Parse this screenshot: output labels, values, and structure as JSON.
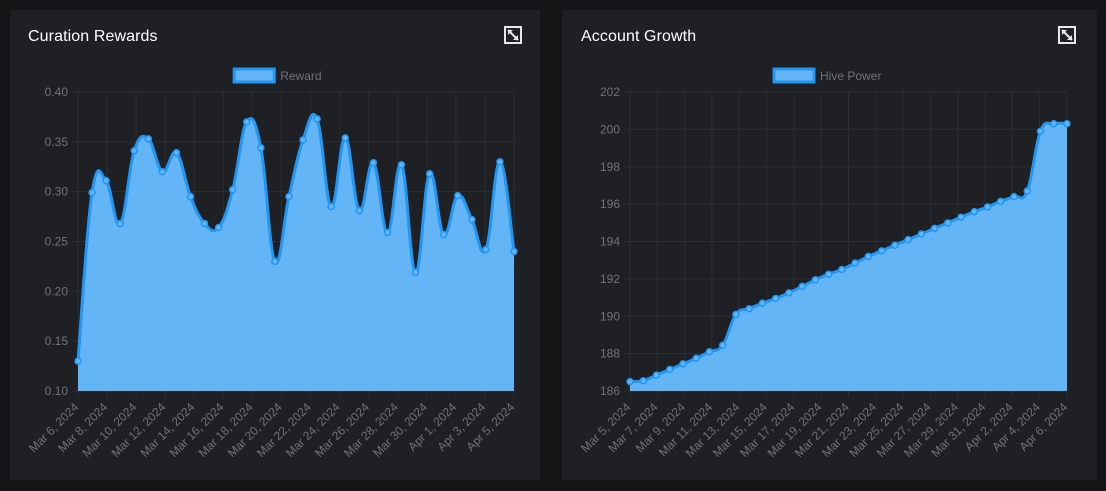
{
  "panels": [
    {
      "title": "Curation Rewards",
      "expand_icon": "expand-icon"
    },
    {
      "title": "Account Growth",
      "expand_icon": "expand-icon"
    }
  ],
  "colors": {
    "fill": "#64b5f6",
    "line": "#2196f3",
    "grid": "#2b2e33",
    "text": "#6f737a"
  },
  "chart_data": [
    {
      "type": "area",
      "series": [
        {
          "name": "Reward",
          "values": [
            0.13,
            0.299,
            0.311,
            0.268,
            0.341,
            0.353,
            0.32,
            0.339,
            0.295,
            0.268,
            0.264,
            0.302,
            0.37,
            0.344,
            0.23,
            0.295,
            0.352,
            0.373,
            0.285,
            0.354,
            0.281,
            0.329,
            0.259,
            0.327,
            0.219,
            0.318,
            0.257,
            0.296,
            0.272,
            0.242,
            0.33,
            0.24
          ]
        }
      ],
      "x_tick_labels": [
        "Mar 6, 2024",
        "Mar 8, 2024",
        "Mar 10, 2024",
        "Mar 12, 2024",
        "Mar 14, 2024",
        "Mar 16, 2024",
        "Mar 18, 2024",
        "Mar 20, 2024",
        "Mar 22, 2024",
        "Mar 24, 2024",
        "Mar 26, 2024",
        "Mar 28, 2024",
        "Mar 30, 2024",
        "Apr 1, 2024",
        "Apr 3, 2024",
        "Apr 5, 2024"
      ],
      "y_ticks": [
        "0.40",
        "0.35",
        "0.30",
        "0.25",
        "0.20",
        "0.15",
        "0.10"
      ],
      "ylim": [
        0.1,
        0.4
      ],
      "legend": "top-center",
      "grid": true
    },
    {
      "type": "area",
      "series": [
        {
          "name": "Hive Power",
          "values": [
            186.5,
            186.55,
            186.85,
            187.15,
            187.45,
            187.75,
            188.1,
            188.45,
            190.1,
            190.4,
            190.7,
            190.95,
            191.25,
            191.6,
            191.95,
            192.25,
            192.5,
            192.85,
            193.2,
            193.5,
            193.8,
            194.1,
            194.4,
            194.7,
            195.0,
            195.3,
            195.6,
            195.85,
            196.15,
            196.4,
            196.7,
            199.9,
            200.3,
            200.3
          ]
        }
      ],
      "x_tick_labels": [
        "Mar 5, 2024",
        "Mar 7, 2024",
        "Mar 9, 2024",
        "Mar 11, 2024",
        "Mar 13, 2024",
        "Mar 15, 2024",
        "Mar 17, 2024",
        "Mar 19, 2024",
        "Mar 21, 2024",
        "Mar 23, 2024",
        "Mar 25, 2024",
        "Mar 27, 2024",
        "Mar 29, 2024",
        "Mar 31, 2024",
        "Apr 2, 2024",
        "Apr 4, 2024",
        "Apr 6, 2024"
      ],
      "y_ticks": [
        "202",
        "200",
        "198",
        "196",
        "194",
        "192",
        "190",
        "188",
        "186"
      ],
      "ylim": [
        186,
        202
      ],
      "legend": "top-center",
      "grid": true
    }
  ]
}
